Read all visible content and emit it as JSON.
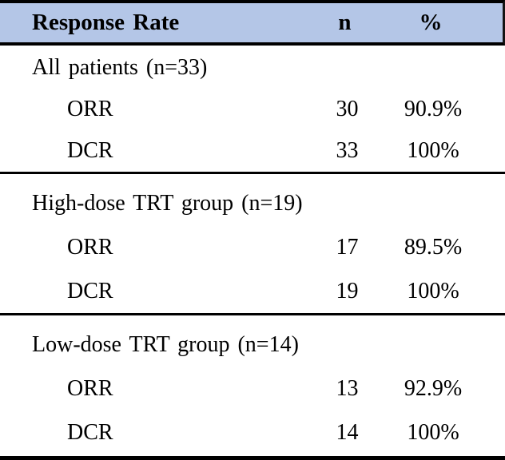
{
  "table": {
    "colors": {
      "header_bg": "#b4c6e7",
      "rule": "#000000",
      "text": "#000000"
    },
    "header": {
      "label": "Response Rate",
      "n": "n",
      "pct": "%"
    },
    "sections": [
      {
        "group": "All patients (n=33)",
        "rows": [
          {
            "label": "ORR",
            "n": "30",
            "pct": "90.9%"
          },
          {
            "label": "DCR",
            "n": "33",
            "pct": "100%"
          }
        ]
      },
      {
        "group": "High-dose TRT group (n=19)",
        "rows": [
          {
            "label": "ORR",
            "n": "17",
            "pct": "89.5%"
          },
          {
            "label": "DCR",
            "n": "19",
            "pct": "100%"
          }
        ]
      },
      {
        "group": "Low-dose TRT group (n=14)",
        "rows": [
          {
            "label": "ORR",
            "n": "13",
            "pct": "92.9%"
          },
          {
            "label": "DCR",
            "n": "14",
            "pct": "100%"
          }
        ]
      }
    ]
  }
}
